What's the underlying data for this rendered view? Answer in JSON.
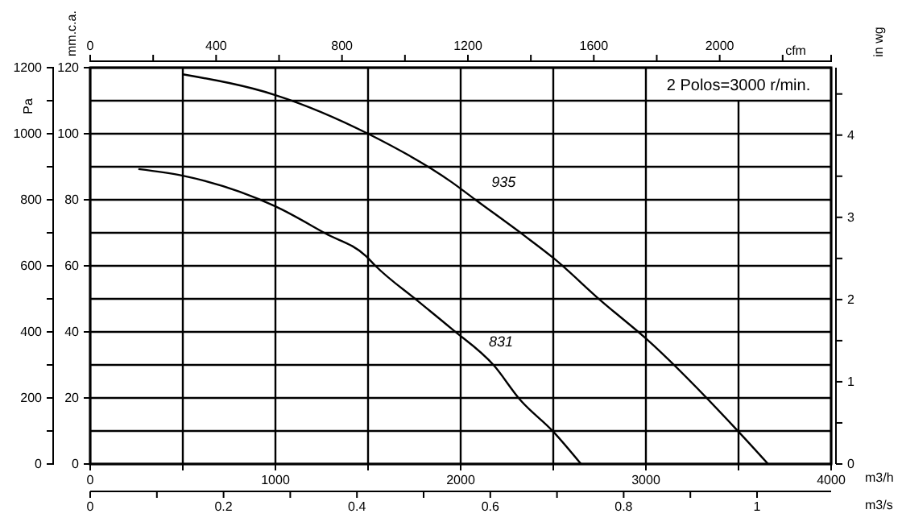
{
  "chart_data": {
    "type": "line",
    "xlabel": "m3/h",
    "ylabel": "Pa",
    "y2label": "mm.c.a.",
    "y3label": "in wg",
    "x2label": "cfm",
    "xlim": [
      0,
      4000
    ],
    "xticks": [
      0,
      {
        "value": 500,
        "label": null
      },
      1000,
      {
        "value": 1500,
        "label": null
      },
      2000,
      {
        "value": 2500,
        "label": null
      },
      3000,
      {
        "value": 3500,
        "label": null
      },
      4000
    ],
    "ylim": [
      0,
      1200
    ],
    "yticks": [
      0,
      {
        "value": 100,
        "label": null
      },
      200,
      {
        "value": 300,
        "label": null
      },
      400,
      {
        "value": 500,
        "label": null
      },
      600,
      {
        "value": 700,
        "label": null
      },
      800,
      {
        "value": 900,
        "label": null
      },
      1000,
      {
        "value": 1100,
        "label": null
      },
      1200
    ],
    "y2lim": [
      0,
      120
    ],
    "y2ticks": [
      0,
      20,
      40,
      60,
      80,
      100,
      120
    ],
    "y3lim": [
      0,
      4.82
    ],
    "y3ticks": [
      0,
      {
        "value": 0.5,
        "label": null
      },
      1,
      {
        "value": 1.5,
        "label": null
      },
      2,
      {
        "value": 2.5,
        "label": null
      },
      3,
      {
        "value": 3.5,
        "label": null
      },
      4,
      {
        "value": 4.5,
        "label": null
      }
    ],
    "x2lim": [
      0,
      2354
    ],
    "x2ticks": [
      0,
      {
        "value": 200,
        "label": null
      },
      400,
      {
        "value": 600,
        "label": null
      },
      800,
      {
        "value": 1000,
        "label": null
      },
      1200,
      {
        "value": 1400,
        "label": null
      },
      1600,
      {
        "value": 1800,
        "label": null
      },
      2000,
      {
        "value": 2200,
        "label": null
      }
    ],
    "grid": true,
    "marker": "none",
    "line_style": "solid",
    "series": [
      {
        "name": "935",
        "color": "#000000",
        "x": [
          500,
          1000,
          1500,
          1950,
          2080,
          2340,
          2500,
          2760,
          3000,
          3500,
          3660
        ],
        "values": [
          1180,
          1117,
          1000,
          854,
          800,
          693,
          624,
          493,
          380,
          98,
          0
        ]
      },
      {
        "name": "831",
        "color": "#000000",
        "x": [
          260,
          500,
          1000,
          1270,
          1490,
          1540,
          1770,
          1950,
          2180,
          2320,
          2500,
          2650
        ],
        "values": [
          893,
          873,
          780,
          698,
          629,
          600,
          493,
          410,
          298,
          195,
          98,
          0
        ]
      }
    ],
    "annotations": [
      "2 Polos=3000 r/min.",
      "m3/s",
      "0",
      "0.2",
      "0.4",
      "0.6",
      "0.8",
      "1"
    ]
  }
}
